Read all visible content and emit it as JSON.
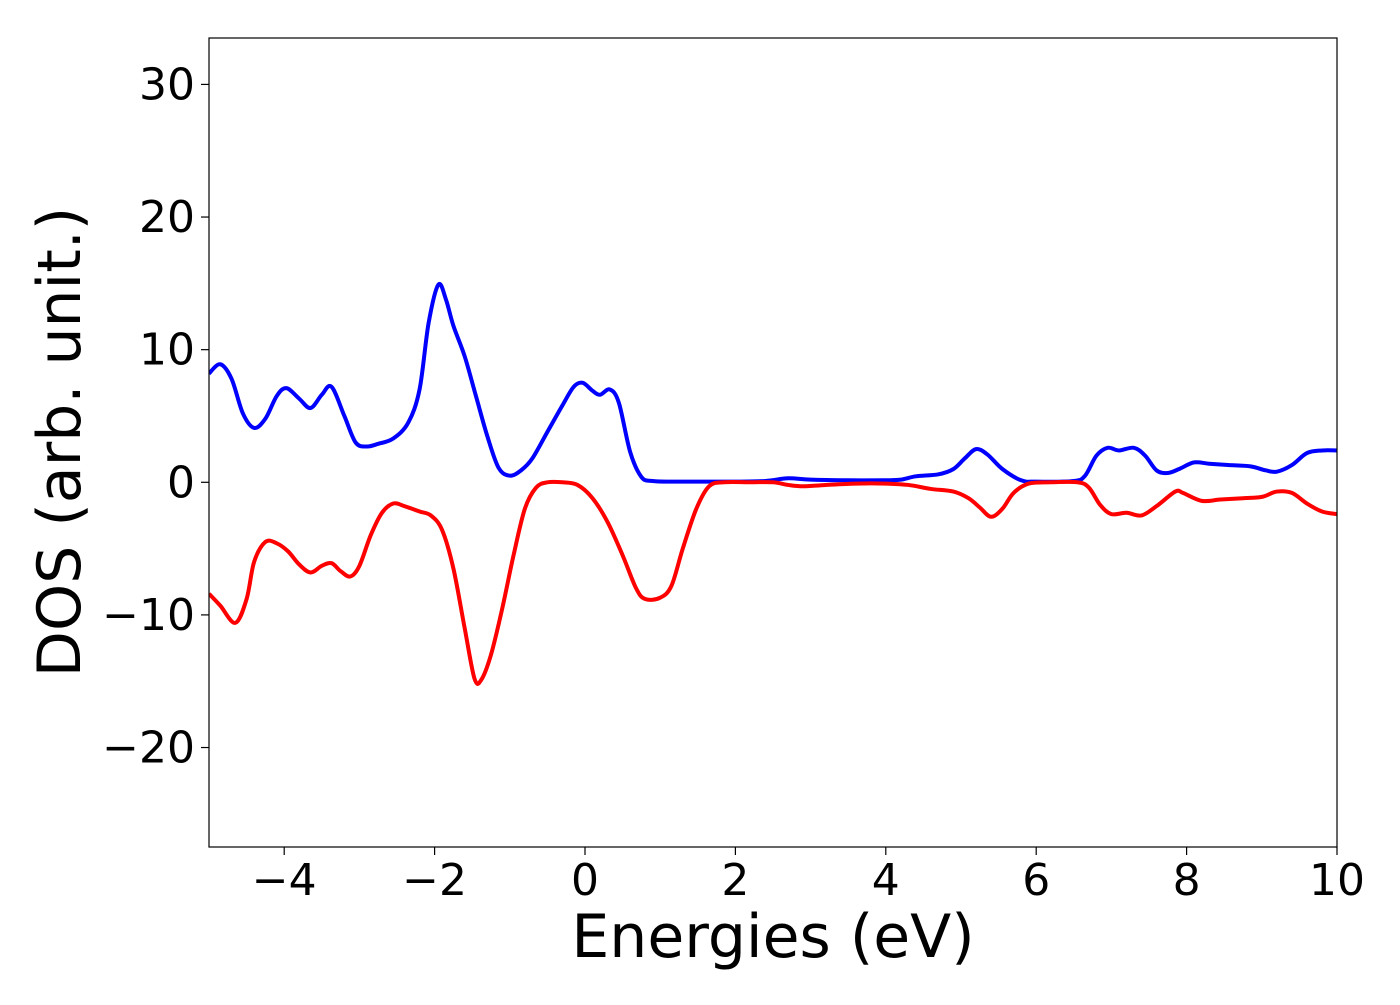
{
  "chart_data": {
    "type": "line",
    "title": "",
    "xlabel": "Energies (eV)",
    "ylabel": "DOS (arb. unit.)",
    "xlim": [
      -5,
      10
    ],
    "ylim": [
      -27.5,
      33.5
    ],
    "grid": false,
    "legend": "none",
    "x_ticks": [
      -4,
      -2,
      0,
      2,
      4,
      6,
      8,
      10
    ],
    "x_tick_labels": [
      "−4",
      "−2",
      "0",
      "2",
      "4",
      "6",
      "8",
      "10"
    ],
    "y_ticks": [
      -20,
      -10,
      0,
      10,
      20,
      30
    ],
    "y_tick_labels": [
      "−20",
      "−10",
      "0",
      "10",
      "20",
      "30"
    ],
    "series": [
      {
        "color": "#0000ff",
        "points": [
          [
            -5.0,
            8.2
          ],
          [
            -4.85,
            8.9
          ],
          [
            -4.7,
            7.8
          ],
          [
            -4.55,
            5.2
          ],
          [
            -4.4,
            4.1
          ],
          [
            -4.25,
            4.8
          ],
          [
            -4.1,
            6.5
          ],
          [
            -3.97,
            7.1
          ],
          [
            -3.8,
            6.3
          ],
          [
            -3.65,
            5.6
          ],
          [
            -3.5,
            6.6
          ],
          [
            -3.37,
            7.2
          ],
          [
            -3.2,
            5.0
          ],
          [
            -3.05,
            3.0
          ],
          [
            -2.9,
            2.7
          ],
          [
            -2.75,
            2.9
          ],
          [
            -2.55,
            3.3
          ],
          [
            -2.35,
            4.5
          ],
          [
            -2.2,
            7.0
          ],
          [
            -2.08,
            12.0
          ],
          [
            -1.95,
            14.9
          ],
          [
            -1.85,
            13.8
          ],
          [
            -1.75,
            11.8
          ],
          [
            -1.6,
            9.5
          ],
          [
            -1.45,
            6.5
          ],
          [
            -1.3,
            3.5
          ],
          [
            -1.15,
            1.1
          ],
          [
            -1.0,
            0.5
          ],
          [
            -0.85,
            0.9
          ],
          [
            -0.7,
            1.8
          ],
          [
            -0.5,
            3.8
          ],
          [
            -0.3,
            5.8
          ],
          [
            -0.15,
            7.2
          ],
          [
            -0.03,
            7.5
          ],
          [
            0.1,
            6.9
          ],
          [
            0.2,
            6.6
          ],
          [
            0.33,
            7.0
          ],
          [
            0.45,
            6.0
          ],
          [
            0.6,
            2.3
          ],
          [
            0.75,
            0.4
          ],
          [
            0.9,
            0.1
          ],
          [
            1.2,
            0.05
          ],
          [
            1.6,
            0.05
          ],
          [
            2.0,
            0.05
          ],
          [
            2.4,
            0.1
          ],
          [
            2.7,
            0.3
          ],
          [
            3.0,
            0.2
          ],
          [
            3.5,
            0.15
          ],
          [
            4.0,
            0.15
          ],
          [
            4.2,
            0.2
          ],
          [
            4.4,
            0.45
          ],
          [
            4.7,
            0.6
          ],
          [
            4.9,
            1.0
          ],
          [
            5.05,
            1.8
          ],
          [
            5.2,
            2.5
          ],
          [
            5.35,
            2.1
          ],
          [
            5.55,
            1.0
          ],
          [
            5.8,
            0.15
          ],
          [
            6.0,
            0.05
          ],
          [
            6.5,
            0.1
          ],
          [
            6.65,
            0.5
          ],
          [
            6.8,
            2.0
          ],
          [
            6.95,
            2.6
          ],
          [
            7.1,
            2.4
          ],
          [
            7.3,
            2.6
          ],
          [
            7.45,
            2.0
          ],
          [
            7.6,
            0.9
          ],
          [
            7.75,
            0.7
          ],
          [
            7.9,
            1.0
          ],
          [
            8.1,
            1.5
          ],
          [
            8.3,
            1.4
          ],
          [
            8.55,
            1.3
          ],
          [
            8.85,
            1.2
          ],
          [
            9.05,
            0.9
          ],
          [
            9.2,
            0.8
          ],
          [
            9.4,
            1.3
          ],
          [
            9.6,
            2.2
          ],
          [
            9.8,
            2.4
          ],
          [
            10.0,
            2.4
          ]
        ]
      },
      {
        "color": "#ff0000",
        "points": [
          [
            -5.0,
            -8.4
          ],
          [
            -4.85,
            -9.3
          ],
          [
            -4.65,
            -10.6
          ],
          [
            -4.5,
            -8.8
          ],
          [
            -4.4,
            -6.0
          ],
          [
            -4.25,
            -4.5
          ],
          [
            -4.1,
            -4.6
          ],
          [
            -3.95,
            -5.2
          ],
          [
            -3.8,
            -6.2
          ],
          [
            -3.65,
            -6.8
          ],
          [
            -3.5,
            -6.3
          ],
          [
            -3.37,
            -6.1
          ],
          [
            -3.25,
            -6.7
          ],
          [
            -3.12,
            -7.1
          ],
          [
            -3.0,
            -6.3
          ],
          [
            -2.85,
            -4.0
          ],
          [
            -2.7,
            -2.3
          ],
          [
            -2.55,
            -1.6
          ],
          [
            -2.4,
            -1.8
          ],
          [
            -2.2,
            -2.2
          ],
          [
            -2.05,
            -2.5
          ],
          [
            -1.9,
            -3.6
          ],
          [
            -1.75,
            -6.5
          ],
          [
            -1.6,
            -11.0
          ],
          [
            -1.47,
            -14.8
          ],
          [
            -1.38,
            -14.9
          ],
          [
            -1.25,
            -13.0
          ],
          [
            -1.1,
            -9.5
          ],
          [
            -0.95,
            -5.5
          ],
          [
            -0.8,
            -2.0
          ],
          [
            -0.65,
            -0.4
          ],
          [
            -0.5,
            0.0
          ],
          [
            -0.3,
            0.0
          ],
          [
            -0.1,
            -0.2
          ],
          [
            0.1,
            -1.2
          ],
          [
            0.3,
            -3.0
          ],
          [
            0.5,
            -5.5
          ],
          [
            0.68,
            -8.0
          ],
          [
            0.8,
            -8.8
          ],
          [
            1.0,
            -8.7
          ],
          [
            1.15,
            -7.8
          ],
          [
            1.3,
            -5.0
          ],
          [
            1.48,
            -2.0
          ],
          [
            1.65,
            -0.3
          ],
          [
            1.85,
            0.0
          ],
          [
            2.2,
            0.0
          ],
          [
            2.5,
            0.0
          ],
          [
            2.7,
            -0.2
          ],
          [
            2.9,
            -0.3
          ],
          [
            3.2,
            -0.2
          ],
          [
            3.6,
            -0.1
          ],
          [
            4.0,
            -0.1
          ],
          [
            4.3,
            -0.2
          ],
          [
            4.6,
            -0.5
          ],
          [
            4.9,
            -0.7
          ],
          [
            5.1,
            -1.2
          ],
          [
            5.25,
            -1.9
          ],
          [
            5.4,
            -2.6
          ],
          [
            5.55,
            -2.0
          ],
          [
            5.7,
            -0.8
          ],
          [
            5.9,
            -0.1
          ],
          [
            6.2,
            0.0
          ],
          [
            6.55,
            0.0
          ],
          [
            6.7,
            -0.4
          ],
          [
            6.85,
            -1.7
          ],
          [
            7.0,
            -2.4
          ],
          [
            7.2,
            -2.3
          ],
          [
            7.4,
            -2.5
          ],
          [
            7.6,
            -1.8
          ],
          [
            7.85,
            -0.7
          ],
          [
            7.95,
            -0.8
          ],
          [
            8.2,
            -1.4
          ],
          [
            8.45,
            -1.3
          ],
          [
            8.75,
            -1.2
          ],
          [
            9.0,
            -1.1
          ],
          [
            9.2,
            -0.7
          ],
          [
            9.4,
            -0.8
          ],
          [
            9.6,
            -1.6
          ],
          [
            9.8,
            -2.2
          ],
          [
            10.0,
            -2.4
          ]
        ]
      }
    ]
  }
}
